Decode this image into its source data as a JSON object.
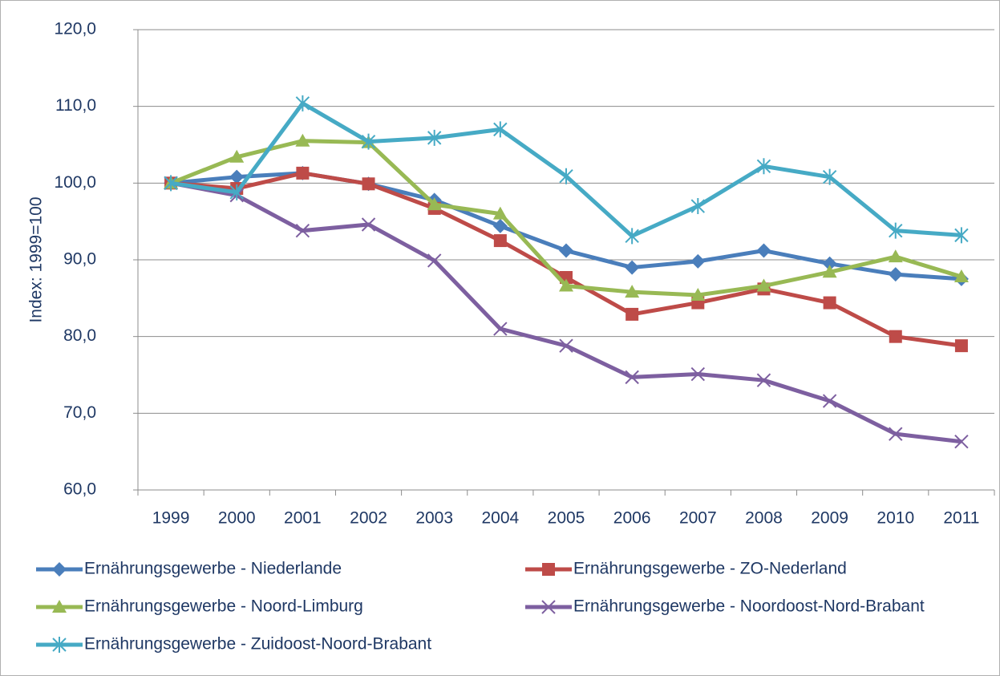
{
  "chart_data": {
    "type": "line",
    "y_label": "Index: 1999=100",
    "categories": [
      "1999",
      "2000",
      "2001",
      "2002",
      "2003",
      "2004",
      "2005",
      "2006",
      "2007",
      "2008",
      "2009",
      "2010",
      "2011"
    ],
    "ylim": [
      60,
      120
    ],
    "yticks": [
      {
        "value": 60,
        "label": "60,0"
      },
      {
        "value": 70,
        "label": "70,0"
      },
      {
        "value": 80,
        "label": "80,0"
      },
      {
        "value": 90,
        "label": "90,0"
      },
      {
        "value": 100,
        "label": "100,0"
      },
      {
        "value": 110,
        "label": "110,0"
      },
      {
        "value": 120,
        "label": "120,0"
      }
    ],
    "grid": true,
    "legend": "bottom",
    "series": [
      {
        "name": "Ernährungsgewerbe - Niederlande",
        "color": "#4a7ebb",
        "marker": "diamond",
        "values": [
          100,
          100.8,
          101.3,
          99.9,
          97.8,
          94.4,
          91.2,
          89.0,
          89.8,
          91.2,
          89.5,
          88.1,
          87.5
        ]
      },
      {
        "name": "Ernährungsgewerbe - ZO-Nederland",
        "color": "#be4b48",
        "marker": "square",
        "values": [
          100,
          99.3,
          101.3,
          99.9,
          96.7,
          92.5,
          87.7,
          82.9,
          84.4,
          86.2,
          84.4,
          80.0,
          78.8
        ]
      },
      {
        "name": "Ernährungsgewerbe - Noord-Limburg",
        "color": "#98b954",
        "marker": "triangle",
        "values": [
          100,
          103.4,
          105.5,
          105.3,
          97.2,
          96.0,
          86.6,
          85.8,
          85.4,
          86.6,
          88.4,
          90.4,
          87.8
        ]
      },
      {
        "name": "Ernährungsgewerbe - Noordoost-Nord-Brabant",
        "color": "#7d5fa0",
        "marker": "x",
        "values": [
          100,
          98.4,
          93.8,
          94.6,
          89.9,
          81.0,
          78.8,
          74.7,
          75.1,
          74.3,
          71.6,
          67.3,
          66.3
        ]
      },
      {
        "name": "Ernährungsgewerbe - Zuidoost-Noord-Brabant",
        "color": "#46aac5",
        "marker": "star",
        "values": [
          100,
          98.8,
          110.4,
          105.4,
          105.9,
          107.0,
          100.9,
          93.1,
          97.0,
          102.2,
          100.8,
          93.8,
          93.2
        ]
      }
    ]
  }
}
